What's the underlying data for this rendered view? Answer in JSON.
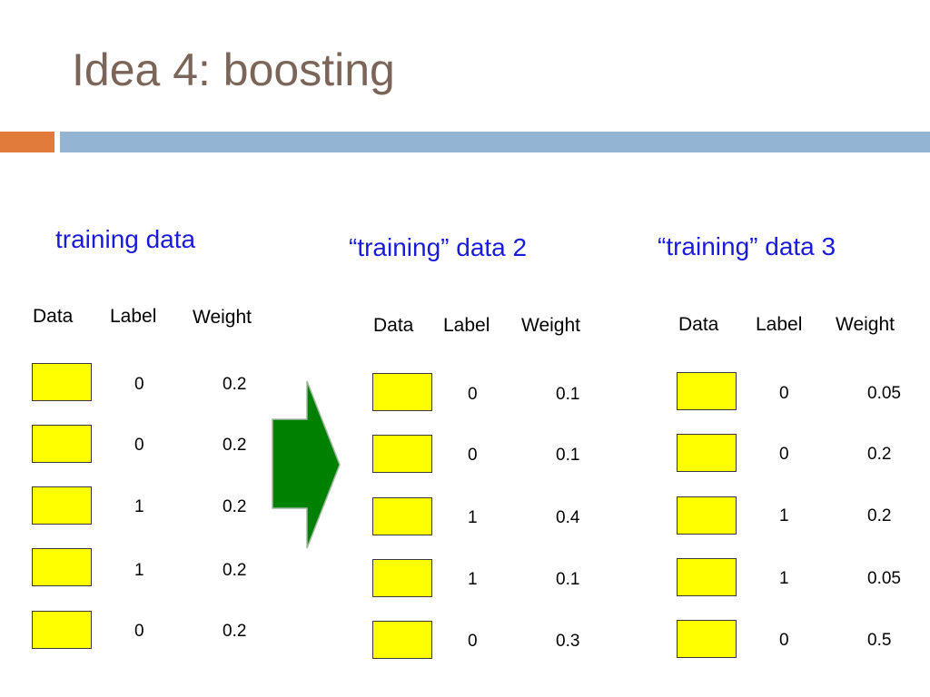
{
  "title": "Idea 4: boosting",
  "colors": {
    "title": "#7a6558",
    "accent_orange": "#e07b39",
    "accent_blue": "#93b4d3",
    "section_title": "#1a1adb",
    "data_box": "#ffff00",
    "arrow": "#008000"
  },
  "headers": {
    "data": "Data",
    "label": "Label",
    "weight": "Weight"
  },
  "datasets": [
    {
      "title": "training data",
      "rows": [
        {
          "label": "0",
          "weight": "0.2"
        },
        {
          "label": "0",
          "weight": "0.2"
        },
        {
          "label": "1",
          "weight": "0.2"
        },
        {
          "label": "1",
          "weight": "0.2"
        },
        {
          "label": "0",
          "weight": "0.2"
        }
      ]
    },
    {
      "title": "“training” data 2",
      "rows": [
        {
          "label": "0",
          "weight": "0.1"
        },
        {
          "label": "0",
          "weight": "0.1"
        },
        {
          "label": "1",
          "weight": "0.4"
        },
        {
          "label": "1",
          "weight": "0.1"
        },
        {
          "label": "0",
          "weight": "0.3"
        }
      ]
    },
    {
      "title": "“training” data 3",
      "rows": [
        {
          "label": "0",
          "weight": "0.05"
        },
        {
          "label": "0",
          "weight": "0.2"
        },
        {
          "label": "1",
          "weight": "0.2"
        },
        {
          "label": "1",
          "weight": "0.05"
        },
        {
          "label": "0",
          "weight": "0.5"
        }
      ]
    }
  ],
  "arrow_icon": "right-arrow-icon"
}
